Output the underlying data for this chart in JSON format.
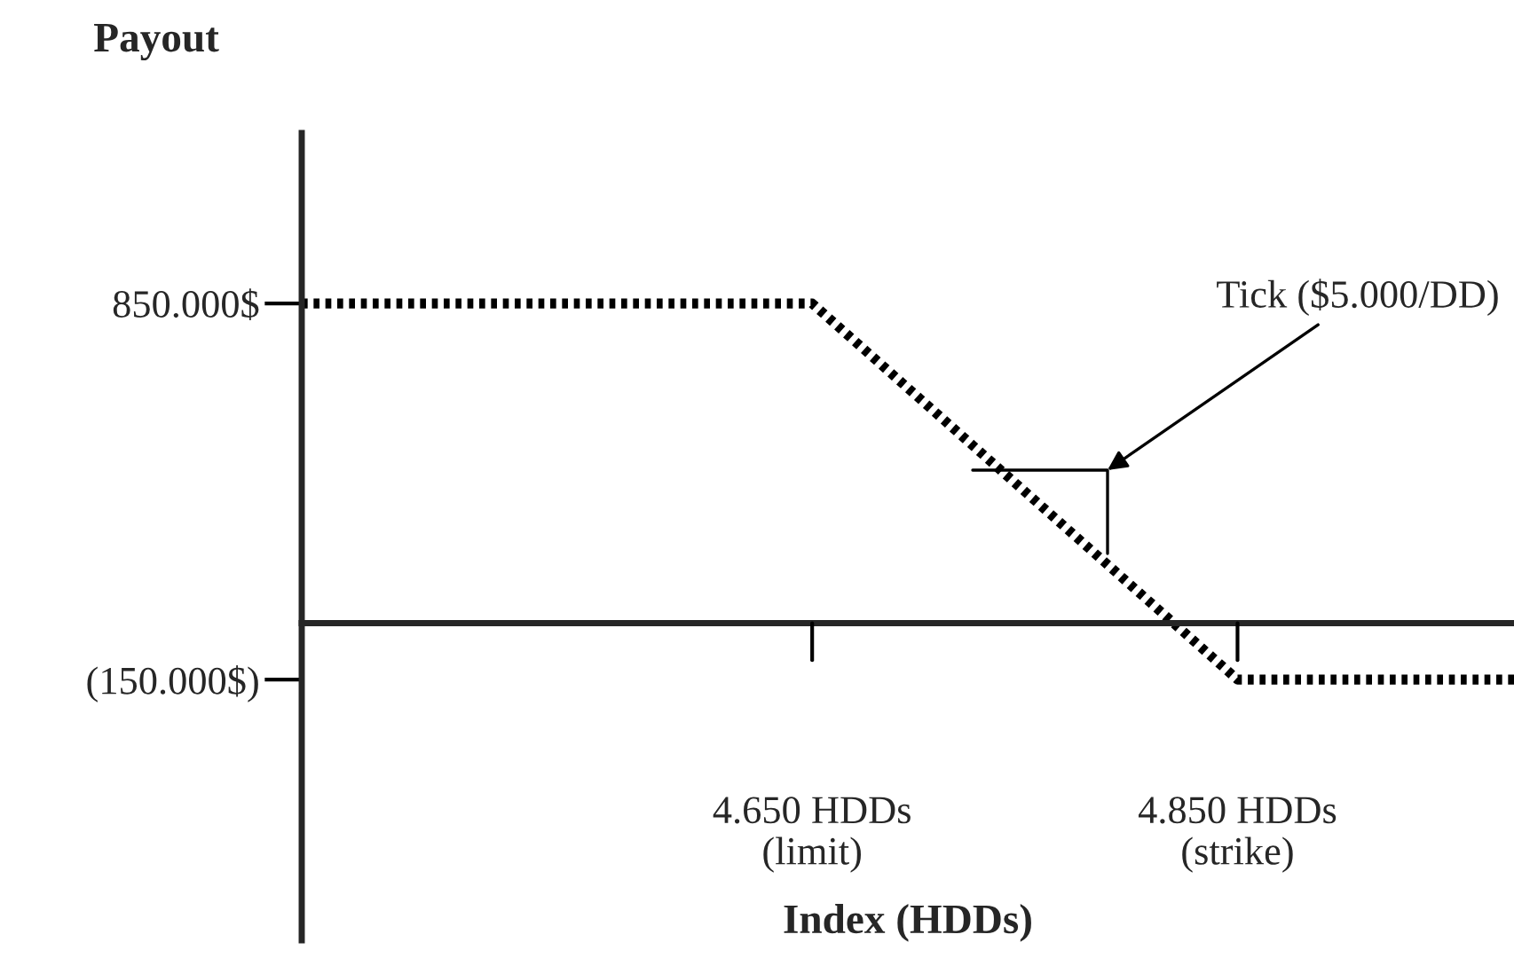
{
  "chart_data": {
    "type": "line",
    "xlabel": "Index (HDDs)",
    "ylabel": "Payout",
    "x": [
      4410,
      4650,
      4850,
      4980
    ],
    "series": [
      {
        "color": "#000000",
        "values": [
          850000,
          850000,
          -150000,
          -150000
        ]
      }
    ],
    "xlim": [
      4410,
      4980
    ],
    "ylim": [
      -843000,
      1303000
    ],
    "xticks": [
      {
        "value": 4650,
        "label": "4.650 HDDs\n(limit)"
      },
      {
        "value": 4850,
        "label": "4.850 HDDs\n(strike)"
      }
    ],
    "yticks": [
      {
        "value": 850000,
        "label": "850.000$"
      },
      {
        "value": -150000,
        "label": "(150.000$)"
      }
    ],
    "annotations": [
      "Tick ($5.000/DD)"
    ],
    "line_style": "dotted",
    "marker": "none",
    "grid": false,
    "legend": false
  }
}
